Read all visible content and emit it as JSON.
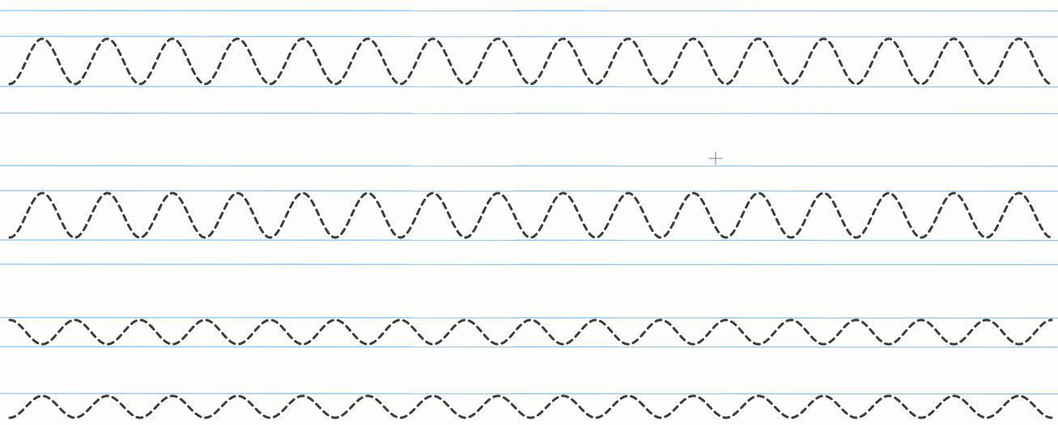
{
  "worksheet": {
    "paper_color": "#fdfdfc",
    "rule_color": "#8fc3ea",
    "trace_color": "#3c3c3c",
    "exercises": [
      {
        "name": "tall-peak-waves",
        "style": "peaks-up",
        "peak_count": 16
      },
      {
        "name": "tall-valley-waves",
        "style": "peaks-up",
        "peak_count": 16
      },
      {
        "name": "small-valley-waves",
        "style": "valleys-down",
        "peak_count": 16
      },
      {
        "name": "small-peak-waves",
        "style": "peaks-up",
        "peak_count": 16
      }
    ],
    "marks": [
      {
        "name": "crosshair-mark"
      }
    ]
  }
}
